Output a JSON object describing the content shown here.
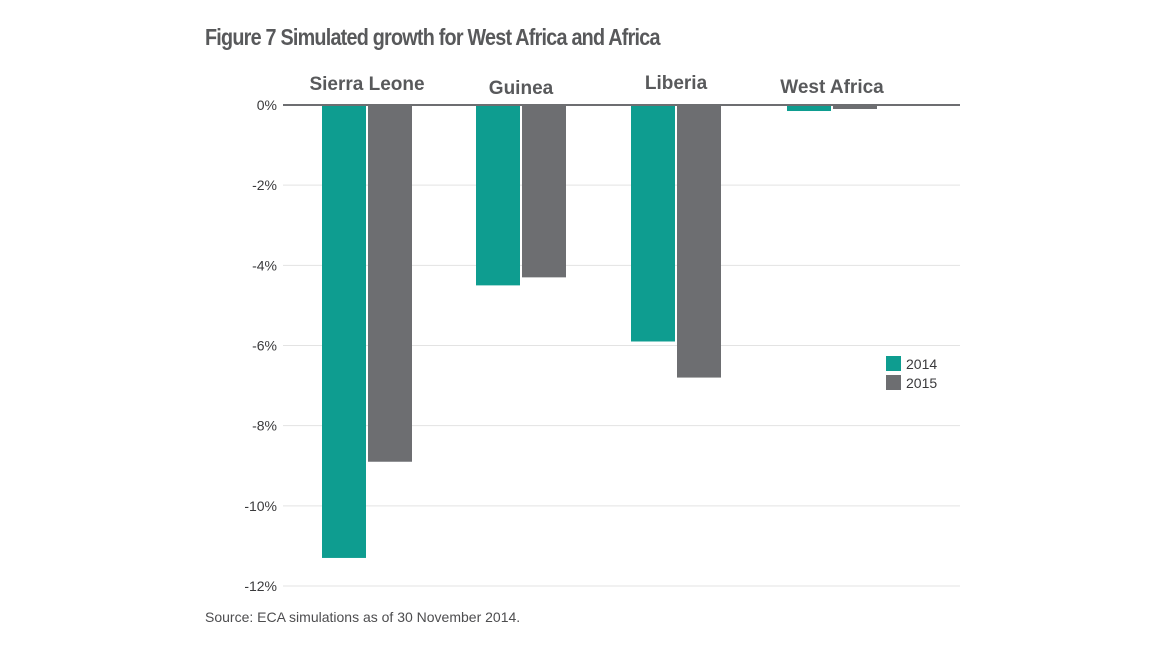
{
  "title": "Figure 7 Simulated growth for West Africa and Africa",
  "source": "Source: ECA simulations as of 30 November 2014.",
  "colors": {
    "s2014": "#0e9d90",
    "s2015": "#6d6e71",
    "grid": "#e3e3e3",
    "axis": "#6d6e71"
  },
  "chart_data": {
    "type": "bar",
    "title": "Figure 7 Simulated growth for West Africa and Africa",
    "categories": [
      "Sierra Leone",
      "Guinea",
      "Liberia",
      "West Africa"
    ],
    "series": [
      {
        "name": "2014",
        "values": [
          -11.3,
          -4.5,
          -5.9,
          -0.15
        ]
      },
      {
        "name": "2015",
        "values": [
          -8.9,
          -4.3,
          -6.8,
          -0.1
        ]
      }
    ],
    "yticks": [
      "0%",
      "-2%",
      "-4%",
      "-6%",
      "-8%",
      "-10%",
      "-12%"
    ],
    "ylim": [
      -12,
      0
    ],
    "xlabel": "",
    "ylabel": "",
    "legend": [
      "2014",
      "2015"
    ],
    "legend_position": "right"
  }
}
